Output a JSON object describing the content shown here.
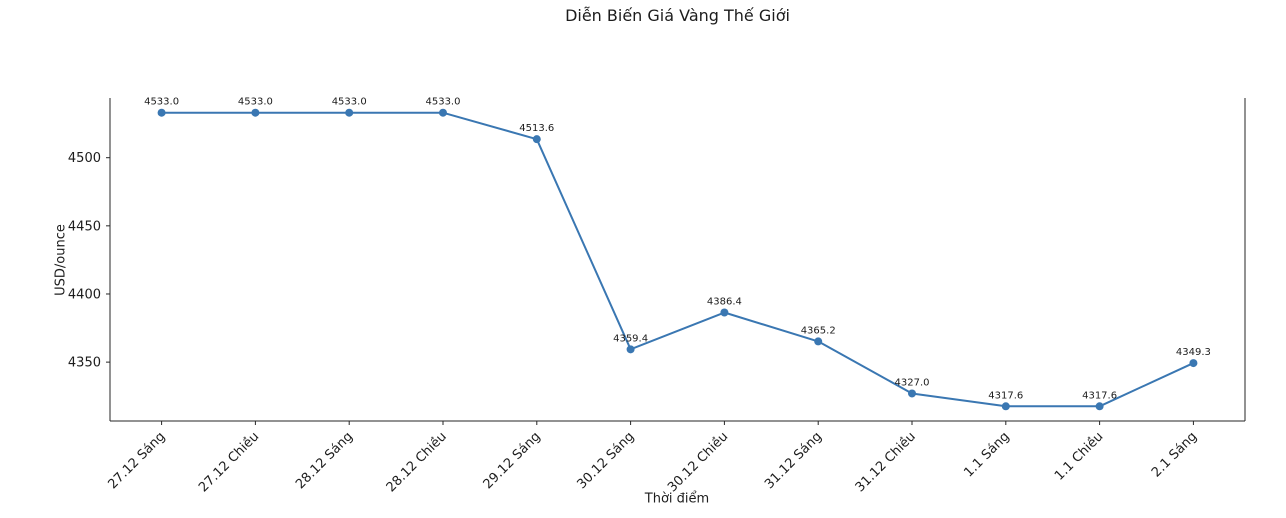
{
  "chart_data": {
    "type": "line",
    "title": "Diễn Biến Giá Vàng Thế Giới",
    "xlabel": "Thời điểm",
    "ylabel": "USD/ounce",
    "categories": [
      "27.12 Sáng",
      "27.12 Chiều",
      "28.12 Sáng",
      "28.12 Chiều",
      "29.12 Sáng",
      "30.12 Sáng",
      "30.12 Chiều",
      "31.12 Sáng",
      "31.12 Chiều",
      "1.1 Sáng",
      "1.1 Chiều",
      "2.1 Sáng"
    ],
    "values": [
      4533.0,
      4533.0,
      4533.0,
      4533.0,
      4513.6,
      4359.4,
      4386.4,
      4365.2,
      4327.0,
      4317.6,
      4317.6,
      4349.3
    ],
    "point_labels": [
      "4533.0",
      "4533.0",
      "4533.0",
      "4533.0",
      "4513.6",
      "4359.4",
      "4386.4",
      "4365.2",
      "4327.0",
      "4317.6",
      "4317.6",
      "4349.3"
    ],
    "yticks": [
      4350,
      4400,
      4450,
      4500
    ],
    "ylim": [
      4306.8,
      4543.8
    ],
    "x_tick_rotation": 45,
    "grid": false,
    "legend": null,
    "line_color": "#3a77b2",
    "marker": "circle",
    "axis_color": "#262626"
  }
}
